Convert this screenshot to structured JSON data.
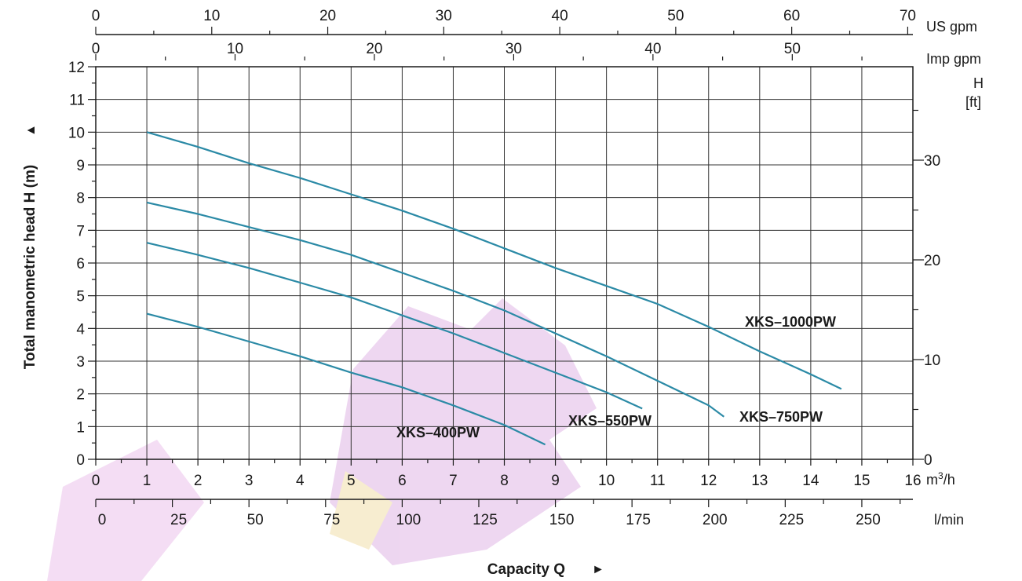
{
  "chart_data": {
    "type": "line",
    "x": {
      "label": "Capacity Q",
      "unit": "m³/h",
      "range": [
        0,
        16
      ],
      "ticks": [
        0,
        1,
        2,
        3,
        4,
        5,
        6,
        7,
        8,
        9,
        10,
        11,
        12,
        13,
        14,
        15,
        16
      ]
    },
    "y": {
      "label": "Total manometric head H (m)",
      "range": [
        0,
        12
      ],
      "ticks": [
        0,
        1,
        2,
        3,
        4,
        5,
        6,
        7,
        8,
        9,
        10,
        11,
        12
      ]
    },
    "secondary_axes": {
      "us_gpm": {
        "unit": "US gpm",
        "ticks": [
          0,
          10,
          20,
          30,
          40,
          50,
          60,
          70
        ]
      },
      "imp_gpm": {
        "unit": "Imp gpm",
        "ticks": [
          0,
          10,
          20,
          30,
          40,
          50
        ]
      },
      "l_min": {
        "unit": "l/min",
        "ticks": [
          0,
          25,
          50,
          75,
          100,
          125,
          150,
          175,
          200,
          225,
          250
        ]
      },
      "h_ft": {
        "unit_line1": "H",
        "unit_line2": "[ft]",
        "ticks": [
          0,
          10,
          20,
          30
        ]
      }
    },
    "arrow_up": "▲",
    "arrow_right": "►",
    "grid": true,
    "line_color": "#2b8aa6",
    "series": [
      {
        "name": "XKS-1000PW",
        "x": [
          1,
          2,
          3,
          4,
          5,
          6,
          7,
          8,
          9,
          10,
          11,
          12,
          13,
          14,
          14.6
        ],
        "y": [
          10.0,
          9.55,
          9.05,
          8.6,
          8.1,
          7.6,
          7.05,
          6.45,
          5.85,
          5.3,
          4.75,
          4.05,
          3.3,
          2.6,
          2.15
        ]
      },
      {
        "name": "XKS-750PW",
        "x": [
          1,
          2,
          3,
          4,
          5,
          6,
          7,
          8,
          9,
          10,
          11,
          12,
          12.3
        ],
        "y": [
          7.85,
          7.5,
          7.1,
          6.7,
          6.25,
          5.7,
          5.15,
          4.55,
          3.85,
          3.15,
          2.4,
          1.65,
          1.3
        ]
      },
      {
        "name": "XKS-550PW",
        "x": [
          1,
          2,
          3,
          4,
          5,
          6,
          7,
          8,
          9,
          10,
          10.7
        ],
        "y": [
          6.62,
          6.25,
          5.85,
          5.4,
          4.95,
          4.4,
          3.85,
          3.25,
          2.65,
          2.05,
          1.55
        ]
      },
      {
        "name": "XKS-400PW",
        "x": [
          1,
          2,
          3,
          4,
          5,
          6,
          7,
          8,
          8.8
        ],
        "y": [
          4.45,
          4.05,
          3.6,
          3.15,
          2.65,
          2.2,
          1.65,
          1.05,
          0.45
        ]
      }
    ],
    "labels": {
      "XKS-1000PW": "XKS–1000PW",
      "XKS-750PW": "XKS–750PW",
      "XKS-550PW": "XKS–550PW",
      "XKS-400PW": "XKS–400PW"
    }
  }
}
